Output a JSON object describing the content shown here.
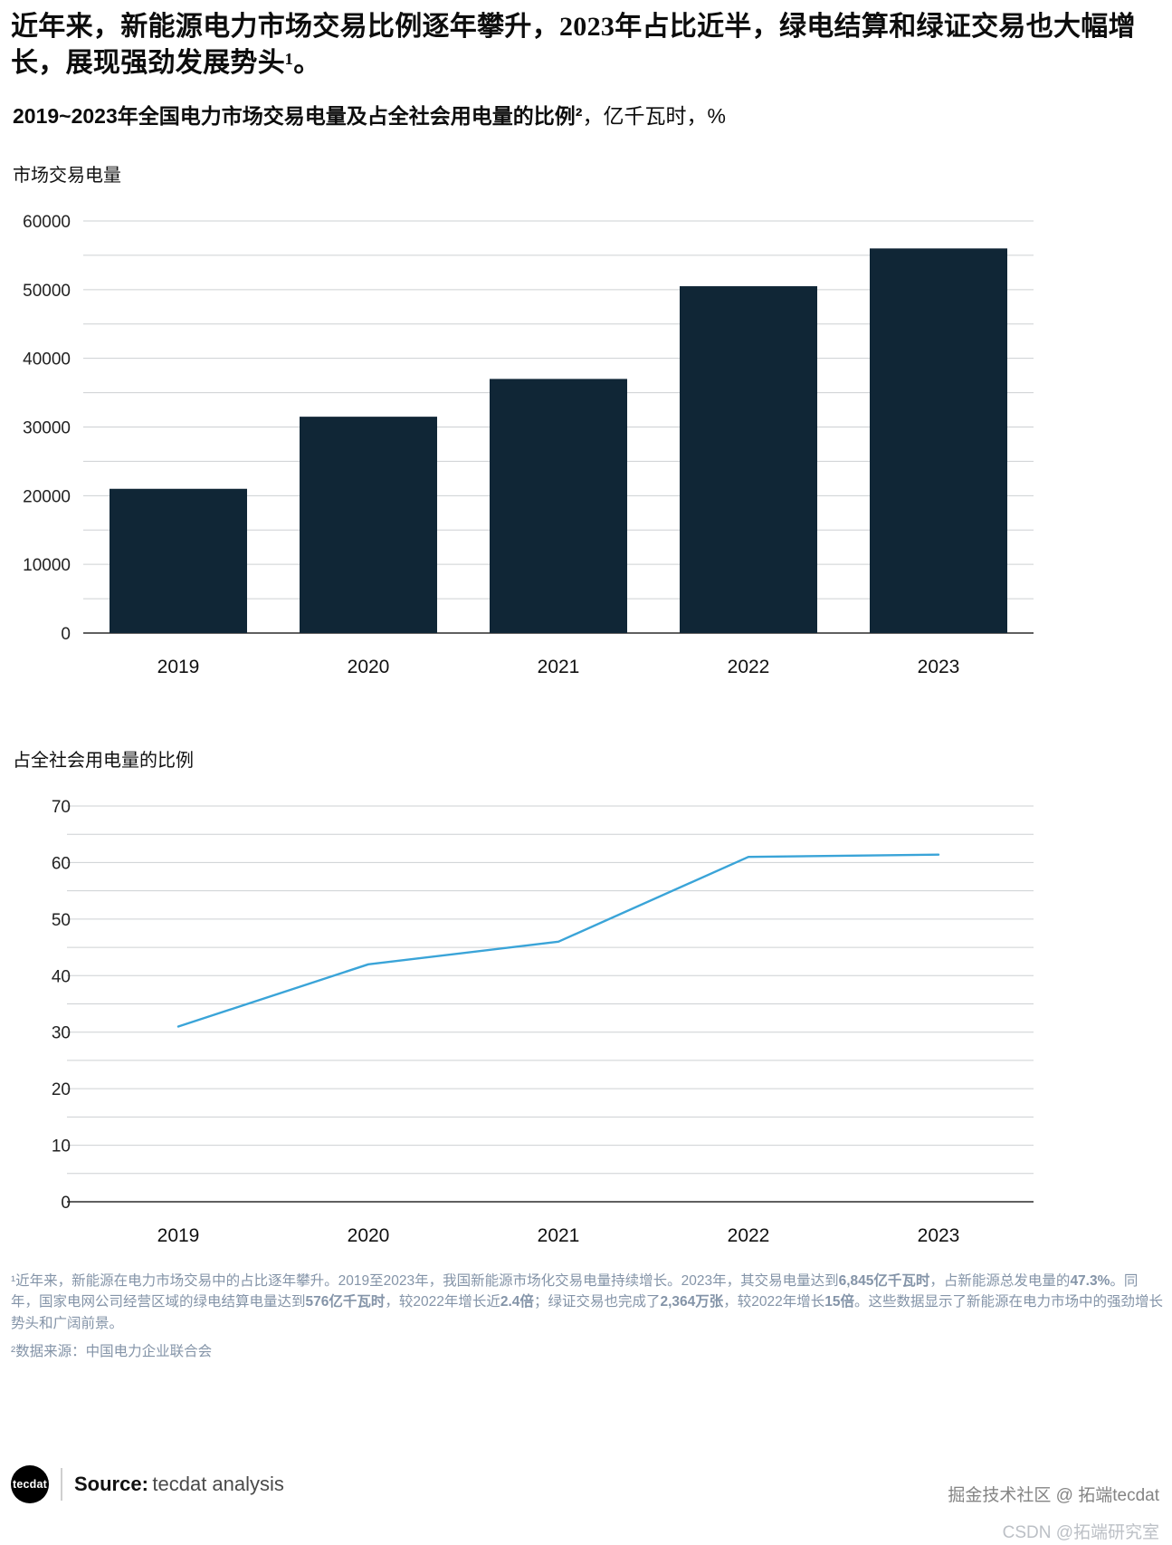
{
  "header": {
    "title": "近年来，新能源电力市场交易比例逐年攀升，2023年占比近半，绿电结算和绿证交易也大幅增长，展现强劲发展势头¹。",
    "subtitle_bold": "2019~2023年全国电力市场交易电量及占全社会用电量的比例²",
    "subtitle_rest": "，亿千瓦时，%"
  },
  "chart_data": [
    {
      "type": "bar",
      "title": "市场交易电量",
      "categories": [
        "2019",
        "2020",
        "2021",
        "2022",
        "2023"
      ],
      "values": [
        21000,
        31500,
        37000,
        50500,
        56000
      ],
      "xlabel": "",
      "ylabel": "市场交易电量",
      "unit": "亿千瓦时",
      "ylim": [
        0,
        60000
      ],
      "grid_step": 5000,
      "label_step": 10000,
      "grid": true,
      "legend": "none",
      "color": "#102636"
    },
    {
      "type": "line",
      "title": "占全社会用电量的比例",
      "categories": [
        "2019",
        "2020",
        "2021",
        "2022",
        "2023"
      ],
      "values": [
        31,
        42,
        46,
        61,
        61.4
      ],
      "xlabel": "",
      "ylabel": "占全社会用电量的比例",
      "unit": "%",
      "ylim": [
        0,
        70
      ],
      "grid_step": 5,
      "label_step": 10,
      "grid": true,
      "legend": "none",
      "color": "#3aa4d8"
    }
  ],
  "footnotes": {
    "note1_segments": [
      {
        "t": "¹近年来，新能源在电力市场交易中的占比逐年攀升。2019至2023年，我国新能源市场化交易电量持续增长。2023年，其交易电量达到",
        "b": false
      },
      {
        "t": "6,845亿千瓦时",
        "b": true
      },
      {
        "t": "，占新能源总发电量的",
        "b": false
      },
      {
        "t": "47.3%",
        "b": true
      },
      {
        "t": "。同年，国家电网公司经营区域的绿电结算电量达到",
        "b": false
      },
      {
        "t": "576亿千瓦时",
        "b": true
      },
      {
        "t": "，较2022年增长近",
        "b": false
      },
      {
        "t": "2.4倍",
        "b": true
      },
      {
        "t": "；绿证交易也完成了",
        "b": false
      },
      {
        "t": "2,364万张",
        "b": true
      },
      {
        "t": "，较2022年增长",
        "b": false
      },
      {
        "t": "15倍",
        "b": true
      },
      {
        "t": "。这些数据显示了新能源在电力市场中的强劲增长势头和广阔前景。",
        "b": false
      }
    ],
    "note2": "²数据来源：中国电力企业联合会"
  },
  "source": {
    "logo_text": "tecdat",
    "label": "Source:",
    "value": "tecdat analysis"
  },
  "watermarks": {
    "line1": "掘金技术社区 @ 拓端tecdat",
    "line2": "CSDN @拓端研究室"
  },
  "colors": {
    "bar": "#102636",
    "line": "#3aa4d8",
    "grid": "#cdd0d3",
    "axis": "#2b2b2b",
    "footnote": "#8494a8"
  }
}
